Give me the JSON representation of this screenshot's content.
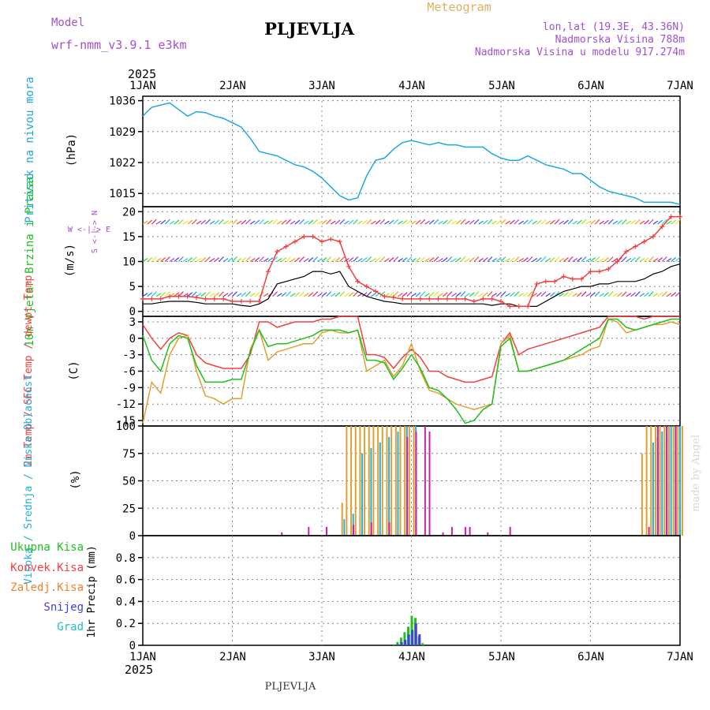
{
  "header": {
    "model_label": "Model",
    "model_name": "wrf-nmm_v3.9.1 e3km",
    "station": "PLJEVLJA",
    "product": "Meteogram",
    "lonlat": "lon,lat (19.3E, 43.36N)",
    "elevation": "Nadmorska Visina 788m",
    "model_elevation": "Nadmorska Visina u modelu 917.274m",
    "footer_station": "PLJEVLJA",
    "credit": "made by Angel"
  },
  "time_axis": {
    "year": "2025",
    "ticks": [
      "1JAN",
      "2JAN",
      "3JAN",
      "4JAN",
      "5JAN",
      "6JAN",
      "7JAN"
    ],
    "range_days": [
      0,
      6
    ]
  },
  "colors": {
    "pressure": "#1ea8e0",
    "t2m": "#f04040",
    "sfc": "#e0a030",
    "dewpt": "#20c020",
    "windspeed": "#000000",
    "gust": "#f04040",
    "high_cloud": "#20b0e0",
    "mid_cloud": "#e0a030",
    "low_cloud": "#d020a0",
    "total_precip": "#20c020",
    "conv_precip": "#f04040",
    "frozen_precip": "#f08030",
    "snow": "#4040e0",
    "graupel": "#20c0c0",
    "title_purple": "#a050d0",
    "title_orange": "#e0b060"
  },
  "chart_data": [
    {
      "type": "line",
      "title": "Pritisak na nivou mora",
      "ylabel": "(hPa)",
      "ylim": [
        1012,
        1037
      ],
      "yticks": [
        1015,
        1022,
        1029,
        1036
      ],
      "series": [
        {
          "name": "Pritisak na nivou mora",
          "x": [
            0,
            0.1,
            0.2,
            0.3,
            0.4,
            0.5,
            0.6,
            0.7,
            0.8,
            0.9,
            1.0,
            1.1,
            1.2,
            1.3,
            1.4,
            1.5,
            1.6,
            1.7,
            1.8,
            1.9,
            2.0,
            2.1,
            2.2,
            2.3,
            2.4,
            2.5,
            2.6,
            2.7,
            2.8,
            2.9,
            3.0,
            3.1,
            3.2,
            3.3,
            3.4,
            3.5,
            3.6,
            3.7,
            3.8,
            3.9,
            4.0,
            4.1,
            4.2,
            4.3,
            4.4,
            4.5,
            4.6,
            4.7,
            4.8,
            4.9,
            5.0,
            5.1,
            5.2,
            5.3,
            5.4,
            5.5,
            5.6,
            5.7,
            5.8,
            5.9,
            6.0
          ],
          "y": [
            1032.5,
            1034.5,
            1035.0,
            1035.5,
            1034.0,
            1032.5,
            1033.5,
            1033.3,
            1032.5,
            1032.0,
            1031.0,
            1030.0,
            1027.5,
            1024.5,
            1024.0,
            1023.5,
            1022.5,
            1021.5,
            1021.0,
            1020.0,
            1018.5,
            1016.5,
            1014.5,
            1013.5,
            1014.0,
            1019.0,
            1022.5,
            1023.0,
            1025.0,
            1026.5,
            1027.0,
            1026.5,
            1026.0,
            1026.5,
            1026.0,
            1026.0,
            1025.5,
            1025.5,
            1025.5,
            1024.0,
            1023.0,
            1022.5,
            1022.5,
            1023.5,
            1022.5,
            1021.5,
            1021.0,
            1020.5,
            1019.5,
            1019.5,
            1018.0,
            1016.5,
            1015.5,
            1015.0,
            1014.5,
            1014.0,
            1013.0,
            1013.0,
            1013.0,
            1013.0,
            1012.5
          ]
        }
      ]
    },
    {
      "type": "line",
      "title": "10m Vjetar Brzina i Pravac",
      "ylabel": "(m/s)",
      "ylim": [
        -1,
        21
      ],
      "yticks": [
        0,
        5,
        10,
        15,
        20
      ],
      "compass_label": "W <-|-> E",
      "compass_label_v": "S <-|-> N",
      "series": [
        {
          "name": "Brzina vjetra",
          "x": [
            0,
            0.1,
            0.2,
            0.3,
            0.4,
            0.5,
            0.6,
            0.7,
            0.8,
            0.9,
            1.0,
            1.1,
            1.2,
            1.3,
            1.4,
            1.5,
            1.6,
            1.7,
            1.8,
            1.9,
            2.0,
            2.1,
            2.2,
            2.3,
            2.4,
            2.5,
            2.6,
            2.7,
            2.8,
            2.9,
            3.0,
            3.1,
            3.2,
            3.3,
            3.4,
            3.5,
            3.6,
            3.7,
            3.8,
            3.9,
            4.0,
            4.1,
            4.2,
            4.3,
            4.4,
            4.5,
            4.6,
            4.7,
            4.8,
            4.9,
            5.0,
            5.1,
            5.2,
            5.3,
            5.4,
            5.5,
            5.6,
            5.7,
            5.8,
            5.9,
            6.0
          ],
          "y": [
            1.5,
            1.5,
            1.8,
            2.0,
            2.0,
            2.0,
            1.8,
            1.5,
            1.5,
            1.5,
            1.5,
            1.2,
            1.0,
            1.5,
            2.5,
            5.5,
            6.0,
            6.5,
            7.0,
            8.0,
            8.0,
            7.5,
            8.0,
            5.0,
            4.0,
            3.0,
            2.5,
            2.0,
            1.8,
            1.5,
            1.5,
            1.5,
            1.5,
            1.5,
            1.5,
            1.5,
            1.5,
            1.5,
            1.5,
            1.2,
            1.5,
            1.5,
            1.0,
            1.0,
            1.0,
            2.0,
            3.0,
            4.0,
            4.5,
            5.0,
            5.0,
            5.5,
            5.5,
            6.0,
            6.0,
            6.0,
            6.5,
            7.5,
            8.0,
            9.0,
            9.5
          ]
        },
        {
          "name": "Udari vjetra",
          "x": [
            0,
            0.1,
            0.2,
            0.3,
            0.4,
            0.5,
            0.6,
            0.7,
            0.8,
            0.9,
            1.0,
            1.1,
            1.2,
            1.3,
            1.4,
            1.5,
            1.6,
            1.7,
            1.8,
            1.9,
            2.0,
            2.1,
            2.2,
            2.3,
            2.4,
            2.5,
            2.6,
            2.7,
            2.8,
            2.9,
            3.0,
            3.1,
            3.2,
            3.3,
            3.4,
            3.5,
            3.6,
            3.7,
            3.8,
            3.9,
            4.0,
            4.1,
            4.2,
            4.3,
            4.4,
            4.5,
            4.6,
            4.7,
            4.8,
            4.9,
            5.0,
            5.1,
            5.2,
            5.3,
            5.4,
            5.5,
            5.6,
            5.7,
            5.8,
            5.9,
            6.0
          ],
          "y": [
            2.5,
            2.5,
            2.5,
            3.0,
            3.0,
            3.0,
            2.8,
            2.5,
            2.5,
            2.5,
            2.0,
            2.0,
            2.0,
            2.0,
            8.0,
            12.0,
            13.0,
            14.0,
            15.0,
            15.0,
            14.0,
            14.5,
            14.0,
            9.0,
            6.0,
            5.0,
            4.0,
            3.0,
            2.8,
            2.5,
            2.5,
            2.5,
            2.5,
            2.5,
            2.5,
            2.5,
            2.5,
            2.0,
            2.5,
            2.5,
            2.0,
            1.0,
            1.0,
            1.0,
            5.5,
            6.0,
            6.0,
            7.0,
            6.5,
            6.5,
            8.0,
            8.0,
            8.5,
            10.0,
            12.0,
            13.0,
            14.0,
            15.0,
            17.0,
            19.0,
            19.0
          ]
        }
      ],
      "barb_levels": [
        3,
        10,
        17.5
      ],
      "barb_colors": [
        "#4040f0",
        "#2090f0",
        "#20d0d0",
        "#20d060",
        "#a0e020",
        "#f0e020",
        "#f0a020",
        "#f04040",
        "#d02080",
        "#a040d0"
      ]
    },
    {
      "type": "line",
      "title": "2m Temp / SFC Temp / dewpt Temp",
      "ylabel": "(C)",
      "ylim": [
        -16,
        4
      ],
      "yticks": [
        3,
        0,
        -3,
        -6,
        -9,
        -12,
        -15
      ],
      "series": [
        {
          "name": "2m Temp",
          "x": [
            0,
            0.1,
            0.2,
            0.3,
            0.4,
            0.5,
            0.6,
            0.7,
            0.8,
            0.9,
            1.0,
            1.1,
            1.2,
            1.3,
            1.4,
            1.5,
            1.6,
            1.7,
            1.8,
            1.9,
            2.0,
            2.1,
            2.2,
            2.3,
            2.4,
            2.5,
            2.6,
            2.7,
            2.8,
            2.9,
            3.0,
            3.1,
            3.2,
            3.3,
            3.4,
            3.5,
            3.6,
            3.7,
            3.8,
            3.9,
            4.0,
            4.1,
            4.2,
            4.3,
            4.4,
            4.5,
            4.6,
            4.7,
            4.8,
            4.9,
            5.0,
            5.1,
            5.2,
            5.3,
            5.4,
            5.5,
            5.6,
            5.7,
            5.8,
            5.9,
            6.0
          ],
          "y": [
            2.5,
            0.0,
            -2.0,
            0.0,
            1.0,
            0.5,
            -3.0,
            -4.5,
            -5.0,
            -5.5,
            -5.5,
            -5.5,
            -3.0,
            3.0,
            3.0,
            2.0,
            2.5,
            3.0,
            3.0,
            3.0,
            3.5,
            3.5,
            4.0,
            4.0,
            4.0,
            -3.0,
            -3.0,
            -3.5,
            -5.5,
            -3.5,
            -2.0,
            -3.5,
            -6.0,
            -6.0,
            -7.0,
            -7.5,
            -8.0,
            -8.0,
            -7.5,
            -7.0,
            -1.0,
            1.0,
            -3.0,
            -2.0,
            -1.5,
            -1.0,
            -0.5,
            0.0,
            0.5,
            1.0,
            1.5,
            2.0,
            4.0,
            4.5,
            4.5,
            4.0,
            3.5,
            4.0,
            4.0,
            4.5,
            4.5
          ]
        },
        {
          "name": "SFC Temp",
          "x": [
            0,
            0.1,
            0.2,
            0.3,
            0.4,
            0.5,
            0.6,
            0.7,
            0.8,
            0.9,
            1.0,
            1.1,
            1.2,
            1.3,
            1.4,
            1.5,
            1.6,
            1.7,
            1.8,
            1.9,
            2.0,
            2.1,
            2.2,
            2.3,
            2.4,
            2.5,
            2.6,
            2.7,
            2.8,
            2.9,
            3.0,
            3.1,
            3.2,
            3.3,
            3.4,
            3.5,
            3.6,
            3.7,
            3.8,
            3.9,
            4.0,
            4.1,
            4.2,
            4.3,
            4.4,
            4.5,
            4.6,
            4.7,
            4.8,
            4.9,
            5.0,
            5.1,
            5.2,
            5.3,
            5.4,
            5.5,
            5.6,
            5.7,
            5.8,
            5.9,
            6.0
          ],
          "y": [
            -15.5,
            -8.0,
            -10.0,
            -3.0,
            0.0,
            0.5,
            -6.0,
            -10.5,
            -11.0,
            -12.0,
            -11.0,
            -11.0,
            -2.0,
            1.5,
            -4.0,
            -2.5,
            -2.0,
            -1.5,
            -1.0,
            -1.0,
            1.0,
            1.5,
            1.0,
            1.0,
            1.5,
            -6.0,
            -5.0,
            -4.0,
            -7.0,
            -5.0,
            -1.0,
            -6.0,
            -9.5,
            -10.0,
            -11.0,
            -12.0,
            -12.5,
            -13.0,
            -12.5,
            -12.0,
            -1.0,
            0.5,
            -6.0,
            -6.0,
            -5.5,
            -5.0,
            -4.5,
            -4.0,
            -3.5,
            -3.0,
            -2.0,
            -1.5,
            3.5,
            3.0,
            1.0,
            1.5,
            2.0,
            2.5,
            2.5,
            3.0,
            2.5
          ]
        },
        {
          "name": "dewpt Temp",
          "x": [
            0,
            0.1,
            0.2,
            0.3,
            0.4,
            0.5,
            0.6,
            0.7,
            0.8,
            0.9,
            1.0,
            1.1,
            1.2,
            1.3,
            1.4,
            1.5,
            1.6,
            1.7,
            1.8,
            1.9,
            2.0,
            2.1,
            2.2,
            2.3,
            2.4,
            2.5,
            2.6,
            2.7,
            2.8,
            2.9,
            3.0,
            3.1,
            3.2,
            3.3,
            3.4,
            3.5,
            3.6,
            3.7,
            3.8,
            3.9,
            4.0,
            4.1,
            4.2,
            4.3,
            4.4,
            4.5,
            4.6,
            4.7,
            4.8,
            4.9,
            5.0,
            5.1,
            5.2,
            5.3,
            5.4,
            5.5,
            5.6,
            5.7,
            5.8,
            5.9,
            6.0
          ],
          "y": [
            0.5,
            -4.0,
            -6.0,
            -1.0,
            0.5,
            0.0,
            -5.0,
            -8.0,
            -8.0,
            -8.0,
            -7.5,
            -7.5,
            -2.5,
            1.5,
            -1.5,
            -1.0,
            -1.0,
            -0.5,
            0.0,
            0.5,
            1.5,
            1.5,
            1.5,
            1.0,
            1.5,
            -4.0,
            -4.0,
            -4.5,
            -7.5,
            -5.5,
            -3.0,
            -5.5,
            -9.0,
            -9.5,
            -11.0,
            -13.0,
            -15.5,
            -15.0,
            -13.0,
            -12.0,
            -1.5,
            0.0,
            -6.0,
            -6.0,
            -5.5,
            -5.0,
            -4.5,
            -4.0,
            -3.0,
            -2.0,
            -1.0,
            0.0,
            3.5,
            3.5,
            2.0,
            1.5,
            2.0,
            2.5,
            3.0,
            3.5,
            3.5
          ]
        }
      ]
    },
    {
      "type": "bar",
      "title": "Visoka / Srednja / Niska Oblacnost",
      "ylabel": "(%)",
      "ylim": [
        0,
        100
      ],
      "yticks": [
        0,
        25,
        50,
        75,
        100
      ],
      "series": [
        {
          "name": "Visoka Oblacnost",
          "x": [
            2.25,
            2.35,
            2.45,
            2.55,
            2.65,
            2.75,
            2.85,
            2.95,
            3.05,
            5.7,
            5.75,
            5.8,
            5.85,
            5.9,
            5.95,
            6.0
          ],
          "values": [
            15,
            20,
            75,
            80,
            85,
            90,
            95,
            100,
            100,
            85,
            90,
            95,
            100,
            100,
            100,
            100
          ]
        },
        {
          "name": "Srednja Oblacnost",
          "x": [
            2.2,
            2.25,
            2.3,
            2.35,
            2.4,
            2.45,
            2.5,
            2.55,
            2.6,
            2.65,
            2.7,
            2.75,
            2.8,
            2.85,
            2.9,
            2.95,
            3.0,
            5.55,
            5.6,
            5.65,
            5.7,
            5.75,
            5.8,
            5.85,
            5.9,
            5.95,
            6.0
          ],
          "values": [
            30,
            100,
            100,
            100,
            100,
            100,
            100,
            100,
            100,
            100,
            100,
            100,
            100,
            100,
            100,
            100,
            100,
            75,
            100,
            100,
            100,
            100,
            100,
            100,
            100,
            100,
            100
          ]
        },
        {
          "name": "Niska Oblacnost",
          "x": [
            1.5,
            1.8,
            2.0,
            2.3,
            2.5,
            2.7,
            2.9,
            3.0,
            3.1,
            3.15,
            3.3,
            3.4,
            3.55,
            3.6,
            3.8,
            4.05,
            5.6,
            5.7,
            5.8,
            5.9
          ],
          "values": [
            3,
            8,
            8,
            10,
            12,
            12,
            90,
            95,
            100,
            95,
            3,
            8,
            8,
            8,
            3,
            8,
            8,
            100,
            100,
            100
          ]
        }
      ]
    },
    {
      "type": "bar",
      "title": "1hr Precip",
      "ylabel": "1hr Precip (mm)",
      "ylim": [
        0,
        1.0
      ],
      "yticks": [
        0,
        0.2,
        0.4,
        0.6,
        0.8
      ],
      "legend": [
        "Ukupna Kisa",
        "Konvek.Kisa",
        "Zaledj.Kisa",
        "Snijeg",
        "Grad"
      ],
      "series": [
        {
          "name": "Ukupna Kisa",
          "x": [
            2.8,
            2.84,
            2.88,
            2.92,
            2.96,
            3.0,
            3.04,
            3.08,
            3.12
          ],
          "values": [
            0.01,
            0.03,
            0.07,
            0.12,
            0.17,
            0.27,
            0.25,
            0.08,
            0.02
          ]
        },
        {
          "name": "Snijeg",
          "x": [
            2.82,
            2.86,
            2.9,
            2.94,
            2.98,
            3.02,
            3.06
          ],
          "values": [
            0.01,
            0.03,
            0.05,
            0.1,
            0.14,
            0.2,
            0.1
          ]
        }
      ]
    }
  ]
}
